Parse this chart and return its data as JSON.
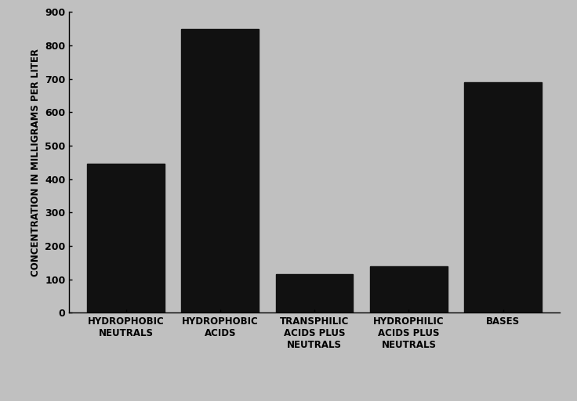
{
  "categories": [
    "HYDROPHOBIC\nNEUTRALS",
    "HYDROPHOBIC\nACIDS",
    "TRANSPHILIC\nACIDS PLUS\nNEUTRALS",
    "HYDROPHILIC\nACIDS PLUS\nNEUTRALS",
    "BASES"
  ],
  "values": [
    445,
    850,
    115,
    140,
    690
  ],
  "bar_color": "#111111",
  "background_color": "#c0c0c0",
  "ylabel": "CONCENTRATION IN MILLIGRAMS PER LITER",
  "ylim": [
    0,
    900
  ],
  "yticks": [
    0,
    100,
    200,
    300,
    400,
    500,
    600,
    700,
    800,
    900
  ],
  "bar_width": 0.82,
  "xlabel_fontsize": 8.5,
  "ylabel_fontsize": 8.5,
  "tick_fontsize": 9,
  "tick_label_fontweight": "bold",
  "axis_label_fontweight": "bold"
}
